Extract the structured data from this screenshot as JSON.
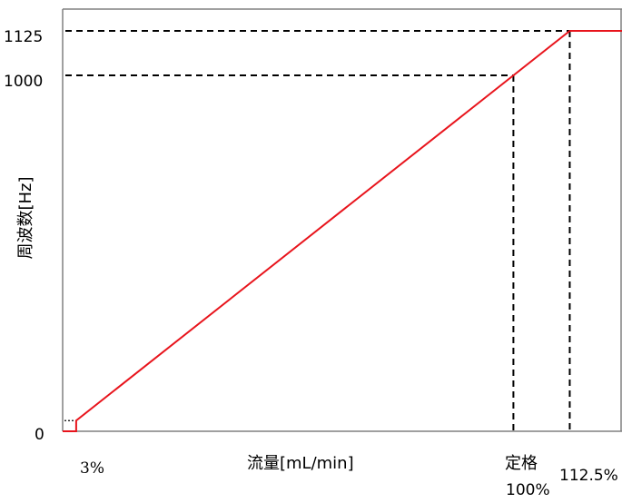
{
  "chart_data": {
    "type": "line",
    "title": "",
    "xlabel": "流量[mL/min]",
    "ylabel": "周波数[Hz]",
    "y_ticks": [
      "1125",
      "1000",
      "0"
    ],
    "x_annotations": {
      "start": "3%",
      "rated_line1": "定格",
      "rated_line2": "100%",
      "max": "112.5%"
    },
    "xlim": [
      0,
      125
    ],
    "ylim": [
      0,
      1250
    ],
    "series": [
      {
        "color": "#e8141c",
        "x": [
          0,
          3,
          3,
          112.5,
          125
        ],
        "y": [
          0,
          0,
          30,
          1125,
          1125
        ]
      }
    ],
    "reference_lines": [
      {
        "x": 100,
        "y": 1000
      },
      {
        "x": 112.5,
        "y": 1125
      }
    ],
    "start_marker": {
      "x": 3,
      "y": 30
    },
    "colors": {
      "series": "#e8141c",
      "axis": "#808080",
      "reference": "#000000"
    }
  }
}
